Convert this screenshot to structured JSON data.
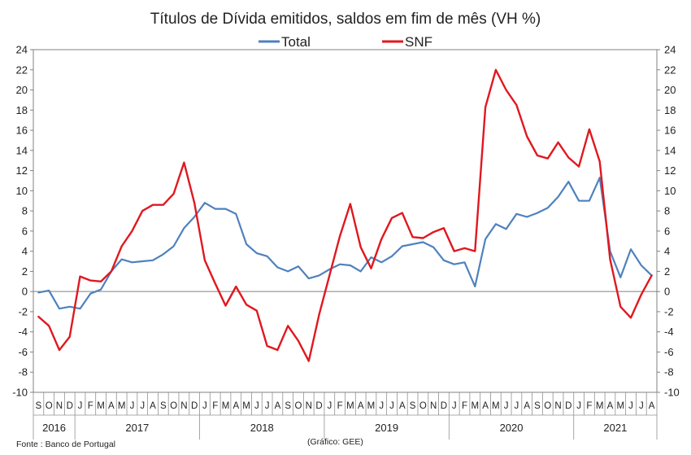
{
  "chart_data": {
    "type": "line",
    "title": "Títulos de Dívida emitidos, saldos em fim de mês  (VH %)",
    "ylim": [
      -10,
      24
    ],
    "yticks": [
      -10,
      -8,
      -6,
      -4,
      -2,
      0,
      2,
      4,
      6,
      8,
      10,
      12,
      14,
      16,
      18,
      20,
      22,
      24
    ],
    "grid": false,
    "legend_position": "top-center",
    "months": [
      "S",
      "O",
      "N",
      "D",
      "J",
      "F",
      "M",
      "A",
      "M",
      "J",
      "J",
      "A",
      "S",
      "O",
      "N",
      "D",
      "J",
      "F",
      "M",
      "A",
      "M",
      "J",
      "J",
      "A",
      "S",
      "O",
      "N",
      "D",
      "J",
      "F",
      "M",
      "A",
      "M",
      "J",
      "J",
      "A",
      "S",
      "O",
      "N",
      "D",
      "J",
      "F",
      "M",
      "A",
      "M",
      "J",
      "J",
      "A",
      "S",
      "O",
      "N",
      "D",
      "J",
      "F",
      "M",
      "A",
      "M",
      "J",
      "J",
      "A"
    ],
    "years": [
      {
        "label": "2016",
        "start": 0,
        "count": 4
      },
      {
        "label": "2017",
        "start": 4,
        "count": 12
      },
      {
        "label": "2018",
        "start": 16,
        "count": 12
      },
      {
        "label": "2019",
        "start": 28,
        "count": 12
      },
      {
        "label": "2020",
        "start": 40,
        "count": 12
      },
      {
        "label": "2021",
        "start": 52,
        "count": 8
      }
    ],
    "series": [
      {
        "name": "Total",
        "color": "#4F81BD",
        "values": [
          -0.1,
          0.1,
          -1.7,
          -1.5,
          -1.7,
          -0.2,
          0.2,
          2.0,
          3.2,
          2.9,
          3.0,
          3.1,
          3.7,
          4.5,
          6.3,
          7.4,
          8.8,
          8.2,
          8.2,
          7.7,
          4.7,
          3.8,
          3.5,
          2.4,
          2.0,
          2.5,
          1.3,
          1.6,
          2.2,
          2.7,
          2.6,
          2.0,
          3.4,
          2.9,
          3.5,
          4.5,
          4.7,
          4.9,
          4.4,
          3.1,
          2.7,
          2.9,
          0.5,
          5.2,
          6.7,
          6.2,
          7.7,
          7.4,
          7.8,
          8.3,
          9.4,
          10.9,
          9.0,
          9.0,
          11.3,
          4.0,
          1.4,
          4.2,
          2.6,
          1.6
        ]
      },
      {
        "name": "SNF",
        "color": "#E0181F",
        "values": [
          -2.5,
          -3.4,
          -5.8,
          -4.5,
          1.5,
          1.1,
          1.0,
          2.0,
          4.5,
          6.0,
          8.0,
          8.6,
          8.6,
          9.7,
          12.8,
          8.8,
          3.1,
          0.8,
          -1.4,
          0.5,
          -1.3,
          -1.9,
          -5.4,
          -5.8,
          -3.4,
          -4.9,
          -6.9,
          -2.3,
          1.6,
          5.5,
          8.7,
          4.4,
          2.3,
          5.2,
          7.3,
          7.8,
          5.4,
          5.3,
          5.9,
          6.3,
          4.0,
          4.3,
          4.0,
          18.3,
          22.0,
          20.0,
          18.5,
          15.4,
          13.5,
          13.2,
          14.8,
          13.3,
          12.4,
          16.1,
          12.9,
          3.2,
          -1.5,
          -2.6,
          -0.3,
          1.6
        ]
      }
    ],
    "source": "Fonte : Banco de Portugal",
    "credit": "(Gráfico: GEE)"
  }
}
